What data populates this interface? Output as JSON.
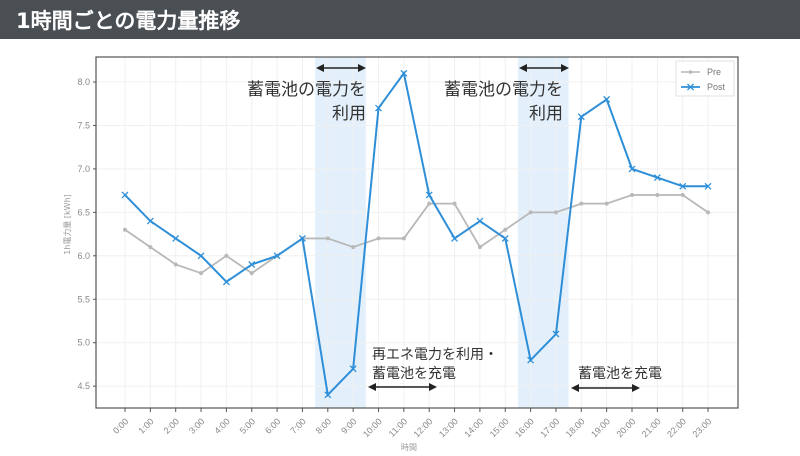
{
  "header": {
    "title": "1時間ごとの電力量推移"
  },
  "annotations": {
    "battery_use_1_line1": "蓄電池の電力を",
    "battery_use_1_line2": "利用",
    "battery_use_2_line1": "蓄電池の電力を",
    "battery_use_2_line2": "利用",
    "renewable_charge_line1": "再エネ電力を利用・",
    "renewable_charge_line2": "蓄電池を充電",
    "battery_charge": "蓄電池を充電"
  },
  "colors": {
    "pre": "#b8b8b8",
    "post": "#2e8fd8",
    "shade": "#e3f0fc",
    "header_bg": "#4a4f54"
  },
  "chart_data": {
    "type": "line",
    "title": "1時間ごとの電力量推移",
    "xlabel": "時間",
    "ylabel": "1h電力量 [kWh]",
    "ylim": [
      4.3,
      8.3
    ],
    "yticks": [
      4.5,
      5.0,
      5.5,
      6.0,
      6.5,
      7.0,
      7.5,
      8.0
    ],
    "ytick_labels": [
      "4.5",
      "5.0",
      "5.5",
      "6.0",
      "6.5",
      "7.0",
      "7.5",
      "8.0"
    ],
    "grid": true,
    "legend_position": "top-right",
    "categories": [
      "0:00",
      "1:00",
      "2:00",
      "3:00",
      "4:00",
      "5:00",
      "6:00",
      "7:00",
      "8:00",
      "9:00",
      "10:00",
      "11:00",
      "12:00",
      "13:00",
      "14:00",
      "15:00",
      "16:00",
      "17:00",
      "18:00",
      "19:00",
      "20:00",
      "21:00",
      "22:00",
      "23:00"
    ],
    "series": [
      {
        "name": "Pre",
        "marker": "dot",
        "values": [
          6.3,
          6.1,
          5.9,
          5.8,
          6.0,
          5.8,
          6.0,
          6.2,
          6.2,
          6.1,
          6.2,
          6.2,
          6.6,
          6.6,
          6.1,
          6.3,
          6.5,
          6.5,
          6.6,
          6.6,
          6.7,
          6.7,
          6.7,
          6.5
        ]
      },
      {
        "name": "Post",
        "marker": "x",
        "values": [
          6.7,
          6.4,
          6.2,
          6.0,
          5.7,
          5.9,
          6.0,
          6.2,
          4.4,
          4.7,
          7.7,
          8.1,
          6.7,
          6.2,
          6.4,
          6.2,
          4.8,
          5.1,
          7.6,
          7.8,
          7.0,
          6.9,
          6.8,
          6.8
        ]
      }
    ],
    "shaded_ranges": [
      [
        "7:30",
        "9:30"
      ],
      [
        "15:30",
        "17:30"
      ]
    ]
  }
}
